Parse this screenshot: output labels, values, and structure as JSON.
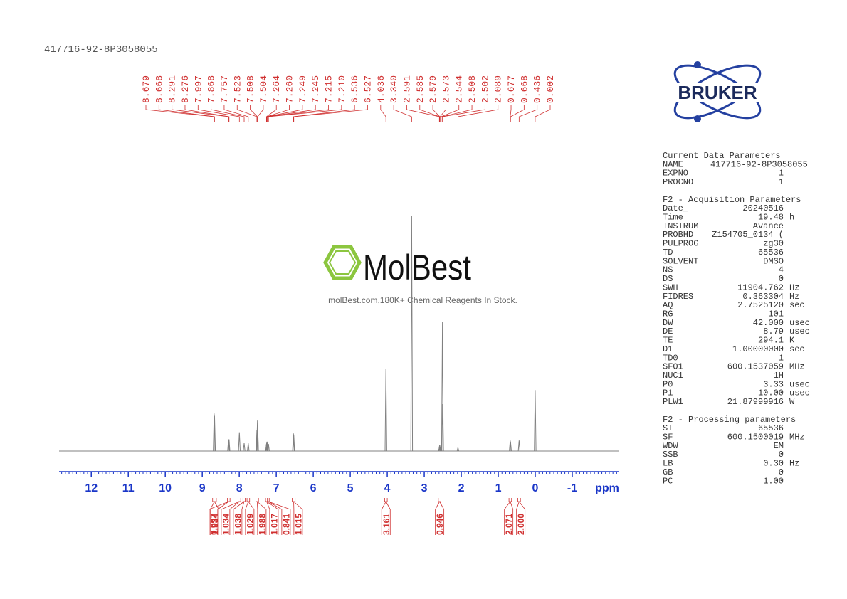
{
  "chart_data": {
    "type": "nmr",
    "title": "417716-92-8P3058055",
    "xlabel": "ppm",
    "xlim": [
      12.87,
      -2.27
    ],
    "xticks": [
      12,
      11,
      10,
      9,
      8,
      7,
      6,
      5,
      4,
      3,
      2,
      1,
      0,
      -1
    ],
    "ylim": [
      0,
      100
    ],
    "line_color": "#808080",
    "label_color": "#d03030",
    "axis_color": "#1a36c8",
    "peaks": {
      "ppm": [
        8.679,
        8.668,
        8.291,
        8.276,
        7.997,
        7.868,
        7.757,
        7.523,
        7.508,
        7.504,
        7.264,
        {
          "value": 7.26,
          "label": "7.260"
        },
        7.249,
        7.245,
        7.215,
        {
          "value": 7.21,
          "label": "7.210"
        },
        6.536,
        6.527,
        4.036,
        {
          "value": 3.34,
          "label": "3.340"
        },
        2.591,
        2.585,
        2.579,
        2.573,
        2.544,
        2.508,
        2.502,
        2.089,
        0.677,
        0.668,
        0.436,
        0.002
      ],
      "intensity": [
        16,
        15,
        5,
        5,
        8,
        3.3,
        3.3,
        9,
        13,
        12,
        3,
        3.5,
        4,
        3.5,
        3,
        3,
        7.5,
        7,
        35,
        100,
        1.5,
        2.5,
        2.5,
        1.5,
        2,
        55,
        20,
        1.5,
        4.5,
        4,
        4.5,
        26
      ]
    },
    "integrals": {
      "ranges": [
        [
          8.72,
          8.62
        ],
        [
          8.32,
          8.25
        ],
        [
          8.03,
          7.96
        ],
        [
          7.9,
          7.84
        ],
        [
          7.79,
          7.72
        ],
        [
          7.55,
          7.48
        ],
        [
          7.29,
          7.23
        ],
        [
          7.24,
          7.19
        ],
        [
          6.57,
          6.49
        ],
        [
          4.07,
          4.0
        ],
        [
          2.62,
          2.55
        ],
        [
          0.71,
          0.64
        ],
        [
          0.47,
          0.4
        ]
      ],
      "values": [
        1.934,
        0.997,
        1.034,
        1.038,
        1.029,
        1.988,
        1.017,
        0.841,
        1.015,
        3.161,
        0.946,
        2.071,
        2
      ],
      "value_labels": [
        "1.934",
        "0.997",
        "1.034",
        "1.038",
        "1.029",
        "1.988",
        "1.017",
        "0.841",
        "1.015",
        "3.161",
        "0.946",
        "2.071",
        "2.000"
      ]
    }
  },
  "logo": "BRUKER",
  "watermark": {
    "name": "MolBest",
    "tagline": "molBest.com,180K+ Chemical Reagents In Stock."
  },
  "parameters": [
    {
      "title": "Current Data Parameters",
      "rows": [
        [
          "NAME",
          "417716-92-8P3058055",
          ""
        ],
        [
          "EXPNO",
          "1",
          ""
        ],
        [
          "PROCNO",
          "1",
          ""
        ]
      ]
    },
    {
      "title": "F2 - Acquisition Parameters",
      "rows": [
        [
          "Date_",
          "20240516",
          ""
        ],
        [
          "Time",
          "19.48",
          "h"
        ],
        [
          "INSTRUM",
          "Avance",
          ""
        ],
        [
          "PROBHD",
          "Z154705_0134 (",
          ""
        ],
        [
          "PULPROG",
          "zg30",
          ""
        ],
        [
          "TD",
          "65536",
          ""
        ],
        [
          "SOLVENT",
          "DMSO",
          ""
        ],
        [
          "NS",
          "4",
          ""
        ],
        [
          "DS",
          "0",
          ""
        ],
        [
          "SWH",
          "11904.762",
          "Hz"
        ],
        [
          "FIDRES",
          "0.363304",
          "Hz"
        ],
        [
          "AQ",
          "2.7525120",
          "sec"
        ],
        [
          "RG",
          "101",
          ""
        ],
        [
          "DW",
          "42.000",
          "usec"
        ],
        [
          "DE",
          "8.79",
          "usec"
        ],
        [
          "TE",
          "294.1",
          "K"
        ],
        [
          "D1",
          "1.00000000",
          "sec"
        ],
        [
          "TD0",
          "1",
          ""
        ],
        [
          "SFO1",
          "600.1537059",
          "MHz"
        ],
        [
          "NUC1",
          "1H",
          ""
        ],
        [
          "P0",
          "3.33",
          "usec"
        ],
        [
          "P1",
          "10.00",
          "usec"
        ],
        [
          "PLW1",
          "21.87999916",
          "W"
        ]
      ]
    },
    {
      "title": "F2 - Processing parameters",
      "rows": [
        [
          "SI",
          "65536",
          ""
        ],
        [
          "SF",
          "600.1500019",
          "MHz"
        ],
        [
          "WDW",
          "EM",
          ""
        ],
        [
          "SSB",
          "0",
          ""
        ],
        [
          "LB",
          "0.30",
          "Hz"
        ],
        [
          "GB",
          "0",
          ""
        ],
        [
          "PC",
          "1.00",
          ""
        ]
      ]
    }
  ]
}
